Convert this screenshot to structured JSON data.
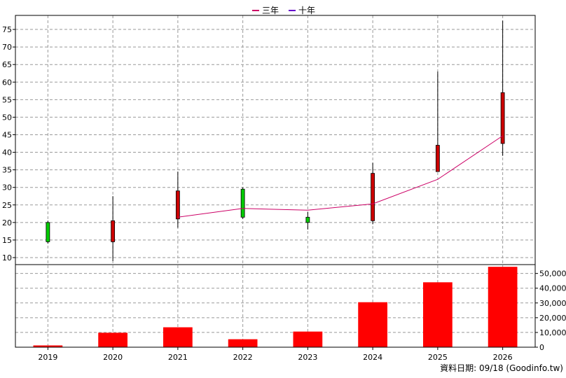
{
  "legend": [
    {
      "label": "三年",
      "color": "#cc0066"
    },
    {
      "label": "十年",
      "color": "#6600cc"
    }
  ],
  "source_text": "資料日期: 09/18  (Goodinfo.tw)",
  "chart_data": [
    {
      "type": "candlestick",
      "categories": [
        "2019",
        "2020",
        "2021",
        "2022",
        "2023",
        "2024",
        "2025",
        "2026"
      ],
      "ohlc": [
        {
          "open": 14.5,
          "high": 20.5,
          "low": 14.0,
          "close": 20.0
        },
        {
          "open": 20.5,
          "high": 27.5,
          "low": 9.0,
          "close": 14.5
        },
        {
          "open": 29.0,
          "high": 34.5,
          "low": 18.5,
          "close": 21.0
        },
        {
          "open": 21.5,
          "high": 30.0,
          "low": 21.0,
          "close": 29.5
        },
        {
          "open": 20.0,
          "high": 23.0,
          "low": 18.0,
          "close": 21.5
        },
        {
          "open": 34.0,
          "high": 37.0,
          "low": 19.5,
          "close": 20.5
        },
        {
          "open": 42.0,
          "high": 63.0,
          "low": 34.5,
          "close": 34.5
        },
        {
          "open": 57.0,
          "high": 77.5,
          "low": 39.0,
          "close": 42.5
        }
      ],
      "rise_color": "#00cc00",
      "fall_color": "#cc0000",
      "series": [
        {
          "name": "三年",
          "color": "#cc0066",
          "values": [
            null,
            null,
            21.5,
            24.0,
            23.5,
            25.3,
            32.3,
            44.7
          ]
        }
      ],
      "y_ticks": [
        10,
        15,
        20,
        25,
        30,
        35,
        40,
        45,
        50,
        55,
        60,
        65,
        70,
        75
      ],
      "ylim": [
        8,
        79
      ]
    },
    {
      "type": "bar",
      "categories": [
        "2019",
        "2020",
        "2021",
        "2022",
        "2023",
        "2024",
        "2025",
        "2026"
      ],
      "values": [
        1200,
        9800,
        13500,
        5400,
        10600,
        30500,
        44000,
        54500
      ],
      "color": "#ff0000",
      "y_ticks": [
        "0",
        "10,000",
        "20,000",
        "30,000",
        "40,000",
        "50,000"
      ],
      "y_tick_values": [
        0,
        10000,
        20000,
        30000,
        40000,
        50000
      ],
      "ylim": [
        0,
        56000
      ]
    }
  ]
}
